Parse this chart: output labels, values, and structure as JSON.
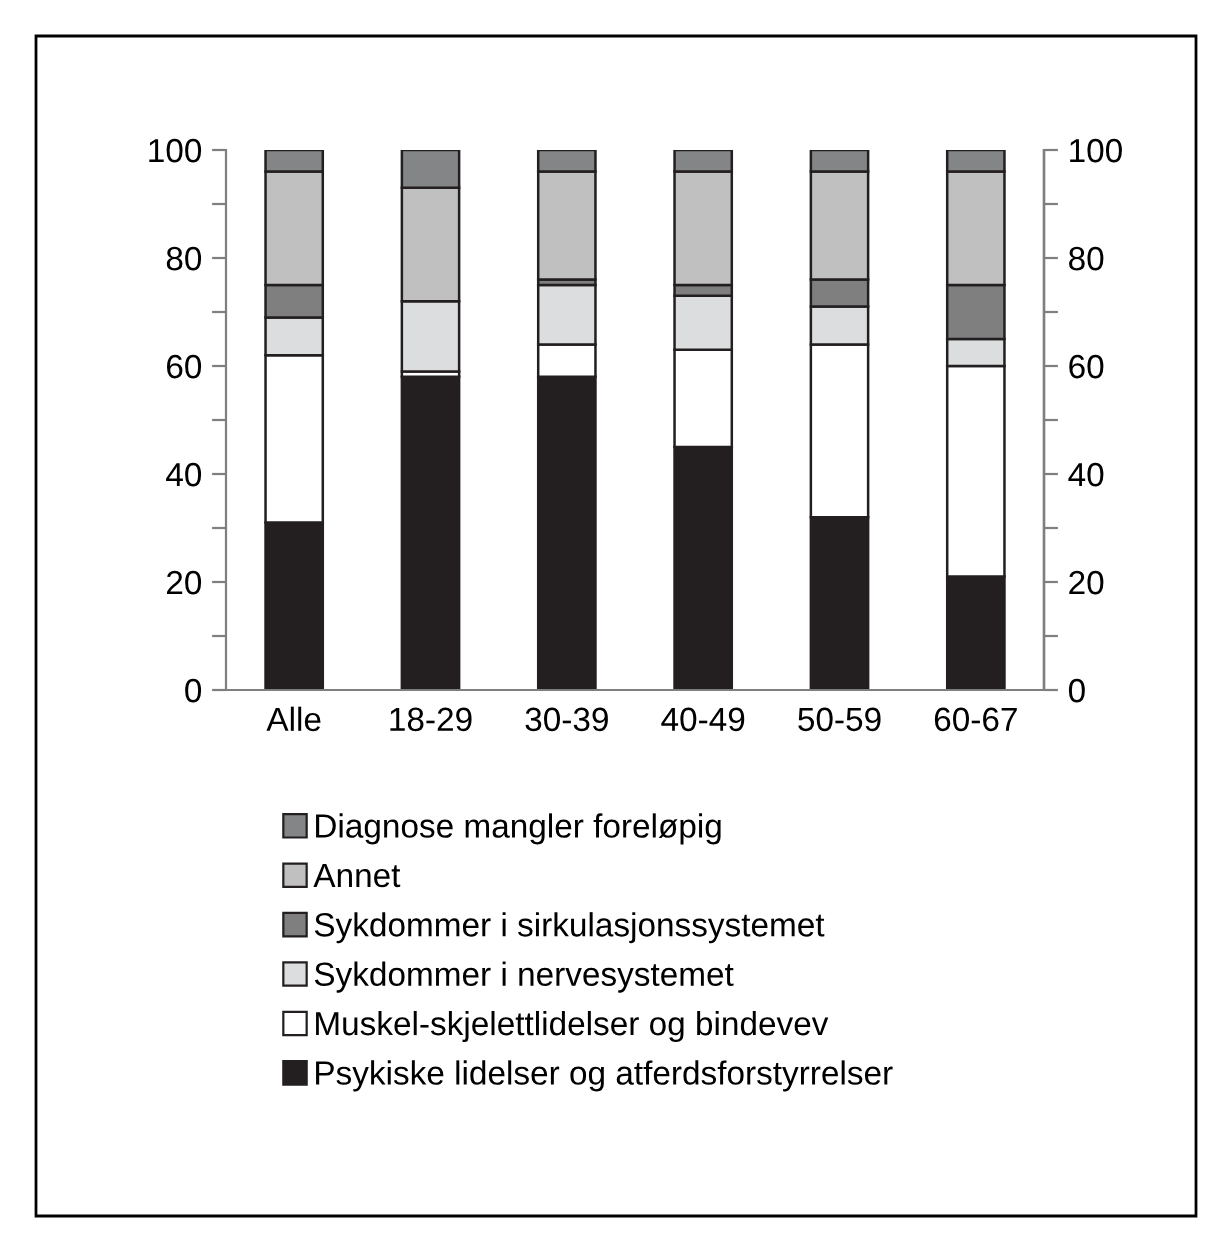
{
  "chart_data": {
    "type": "bar",
    "stacked": true,
    "categories": [
      "Alle",
      "18-29",
      "30-39",
      "40-49",
      "50-59",
      "60-67"
    ],
    "series": [
      {
        "name": "Psykiske lidelser og atferdsforstyrrelser",
        "color": "#231f20",
        "values": [
          31,
          58,
          58,
          45,
          32,
          21
        ]
      },
      {
        "name": "Muskel-skjelettlidelser og bindevev",
        "color": "#ffffff",
        "values": [
          31,
          1,
          6,
          18,
          32,
          39
        ]
      },
      {
        "name": "Sykdommer i nervesystemet",
        "color": "#dcdddf",
        "values": [
          7,
          13,
          11,
          10,
          7,
          5
        ]
      },
      {
        "name": "Sykdommer i sirkulasjonssystemet",
        "color": "#7f7f7f",
        "values": [
          6,
          null,
          1,
          2,
          5,
          10
        ]
      },
      {
        "name": "Annet",
        "color": "#c0c0c0",
        "values": [
          21,
          21,
          20,
          21,
          20,
          21
        ]
      },
      {
        "name": "Diagnose mangler foreløpig",
        "color": "#848587",
        "values": [
          4,
          7,
          4,
          4,
          4,
          4
        ]
      }
    ],
    "ylim": [
      0,
      100
    ],
    "yticks": [
      0,
      {
        "value": 10,
        "label": null
      },
      20,
      {
        "value": 30,
        "label": null
      },
      40,
      {
        "value": 50,
        "label": null
      },
      60,
      {
        "value": 70,
        "label": null
      },
      80,
      {
        "value": 90,
        "label": null
      },
      100
    ],
    "y2lim": [
      0,
      100
    ],
    "y2ticks": [
      0,
      {
        "value": 10,
        "label": null
      },
      20,
      {
        "value": 30,
        "label": null
      },
      40,
      {
        "value": 50,
        "label": null
      },
      60,
      {
        "value": 70,
        "label": null
      },
      80,
      {
        "value": 90,
        "label": null
      },
      100
    ],
    "legend": "bottom",
    "grid": false
  }
}
